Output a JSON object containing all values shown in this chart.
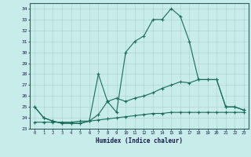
{
  "x": [
    0,
    1,
    2,
    3,
    4,
    5,
    6,
    7,
    8,
    9,
    10,
    11,
    12,
    13,
    14,
    15,
    16,
    17,
    18,
    19,
    20,
    21,
    22,
    23
  ],
  "line1": [
    25.0,
    24.0,
    23.7,
    23.5,
    23.5,
    23.5,
    23.7,
    28.0,
    25.5,
    24.5,
    30.0,
    31.0,
    31.5,
    33.0,
    33.0,
    34.0,
    33.3,
    31.0,
    27.5,
    27.5,
    27.5,
    25.0,
    25.0,
    24.7
  ],
  "line2": [
    25.0,
    24.0,
    23.7,
    23.5,
    23.5,
    23.5,
    23.7,
    24.3,
    25.5,
    25.8,
    25.5,
    25.8,
    26.0,
    26.3,
    26.7,
    27.0,
    27.3,
    27.2,
    27.5,
    27.5,
    27.5,
    25.0,
    25.0,
    24.7
  ],
  "line3": [
    23.6,
    23.6,
    23.6,
    23.6,
    23.6,
    23.7,
    23.7,
    23.8,
    23.9,
    24.0,
    24.1,
    24.2,
    24.3,
    24.4,
    24.4,
    24.5,
    24.5,
    24.5,
    24.5,
    24.5,
    24.5,
    24.5,
    24.5,
    24.5
  ],
  "color": "#1a6b5a",
  "bg_color": "#c8ecea",
  "grid_color": "#b0d4d0",
  "xlabel": "Humidex (Indice chaleur)",
  "ylim": [
    23,
    34.5
  ],
  "xlim": [
    -0.5,
    23.5
  ],
  "yticks": [
    23,
    24,
    25,
    26,
    27,
    28,
    29,
    30,
    31,
    32,
    33,
    34
  ],
  "xticks": [
    0,
    1,
    2,
    3,
    4,
    5,
    6,
    7,
    8,
    9,
    10,
    11,
    12,
    13,
    14,
    15,
    16,
    17,
    18,
    19,
    20,
    21,
    22,
    23
  ]
}
